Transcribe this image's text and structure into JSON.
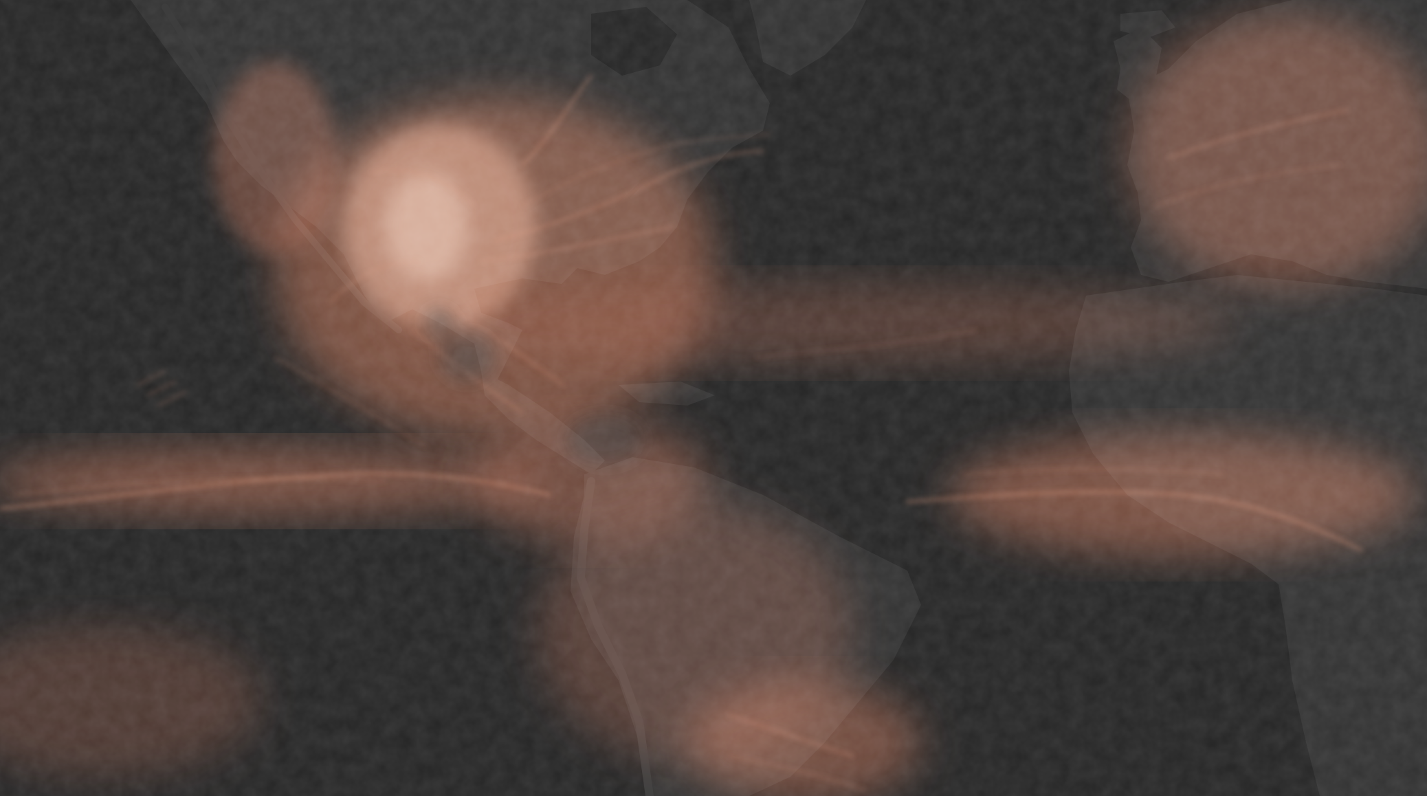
{
  "map": {
    "theme": "dark",
    "colors": {
      "ocean": "#262626",
      "land": "#323232",
      "land_ridge": "#3d3d3d",
      "coast": "#1c1c1c",
      "track": "#c06a48",
      "track_bright": "#e49a78",
      "track_hot": "#f6d0bc"
    },
    "regions_visible": [
      "north-america",
      "central-america",
      "south-america",
      "greenland",
      "europe",
      "africa",
      "north-atlantic-ocean",
      "south-atlantic-ocean",
      "pacific-ocean"
    ],
    "overlay": {
      "type": "density-streaks",
      "icon": "storm-track-icon"
    }
  }
}
